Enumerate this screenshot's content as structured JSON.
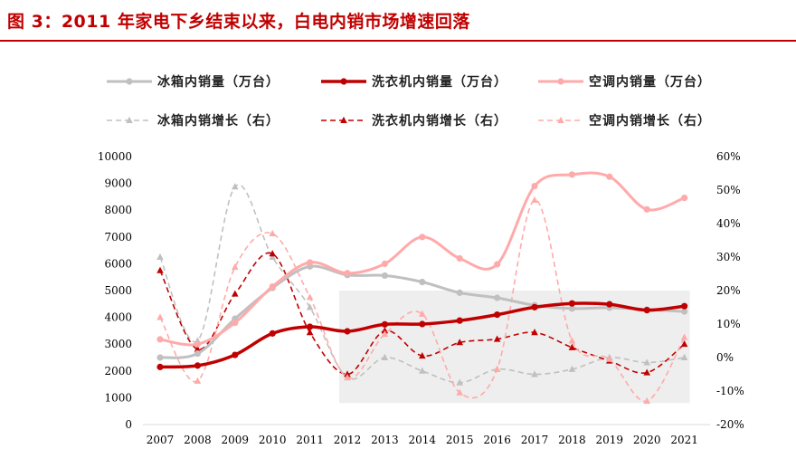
{
  "title": "图 3：2011 年家电下乡结束以来，白电内销市场增速回落",
  "colors": {
    "title": "#c00000",
    "fridge": "#c0c0c0",
    "washer": "#c00000",
    "ac": "#ffaaaa",
    "band": "#eeeeee"
  },
  "chart_data": {
    "type": "line",
    "x": [
      "2007",
      "2008",
      "2009",
      "2010",
      "2011",
      "2012",
      "2013",
      "2014",
      "2015",
      "2016",
      "2017",
      "2018",
      "2019",
      "2020",
      "2021"
    ],
    "y_left": {
      "ylim": [
        0,
        10000
      ],
      "ticks": [
        "0",
        "1000",
        "2000",
        "3000",
        "4000",
        "5000",
        "6000",
        "7000",
        "8000",
        "9000",
        "10000"
      ]
    },
    "y_right": {
      "ylim": [
        -20,
        60
      ],
      "ticks": [
        "-20%",
        "-10%",
        "0%",
        "10%",
        "20%",
        "30%",
        "40%",
        "50%",
        "60%"
      ]
    },
    "highlight_range": {
      "x_from": "2012",
      "x_to": "2021"
    },
    "legend": {
      "fridge_sales": "冰箱内销量（万台）",
      "washer_sales": "洗衣机内销量（万台）",
      "ac_sales": "空调内销量（万台）",
      "fridge_growth": "冰箱内销增长（右）",
      "washer_growth": "洗衣机内销增长（右）",
      "ac_growth": "空调内销增长（右）"
    },
    "series": [
      {
        "key": "fridge_sales",
        "axis": "left",
        "style": "solid",
        "color": "#c0c0c0",
        "values": [
          2500,
          2650,
          3950,
          5100,
          5900,
          5580,
          5560,
          5320,
          4920,
          4730,
          4450,
          4330,
          4360,
          4290,
          4220
        ]
      },
      {
        "key": "washer_sales",
        "axis": "left",
        "style": "solid",
        "color": "#c00000",
        "values": [
          2150,
          2200,
          2600,
          3400,
          3650,
          3480,
          3740,
          3750,
          3880,
          4100,
          4380,
          4520,
          4490,
          4270,
          4420
        ]
      },
      {
        "key": "ac_sales",
        "axis": "left",
        "style": "solid",
        "color": "#ffaaaa",
        "values": [
          3180,
          3000,
          3800,
          5150,
          6050,
          5650,
          6000,
          7000,
          6200,
          5980,
          8900,
          9330,
          9250,
          8030,
          8460
        ]
      },
      {
        "key": "fridge_growth",
        "axis": "right",
        "style": "dashed",
        "color": "#c0c0c0",
        "values": [
          30,
          5,
          51,
          30,
          15,
          -6,
          0,
          -4,
          -7.5,
          -3.5,
          -5,
          -3.5,
          0,
          -1.5,
          0
        ]
      },
      {
        "key": "washer_growth",
        "axis": "right",
        "style": "dashed",
        "color": "#c00000",
        "values": [
          26,
          2.5,
          19,
          31,
          7.5,
          -5,
          8,
          0.5,
          4.5,
          5.5,
          7.5,
          3,
          -1,
          -4.5,
          4
        ]
      },
      {
        "key": "ac_growth",
        "axis": "right",
        "style": "dashed",
        "color": "#ffaaaa",
        "values": [
          12,
          -7,
          27,
          37,
          18,
          -6,
          7,
          13,
          -10.5,
          -3.5,
          47,
          5,
          -0.5,
          -13,
          6
        ]
      }
    ]
  }
}
